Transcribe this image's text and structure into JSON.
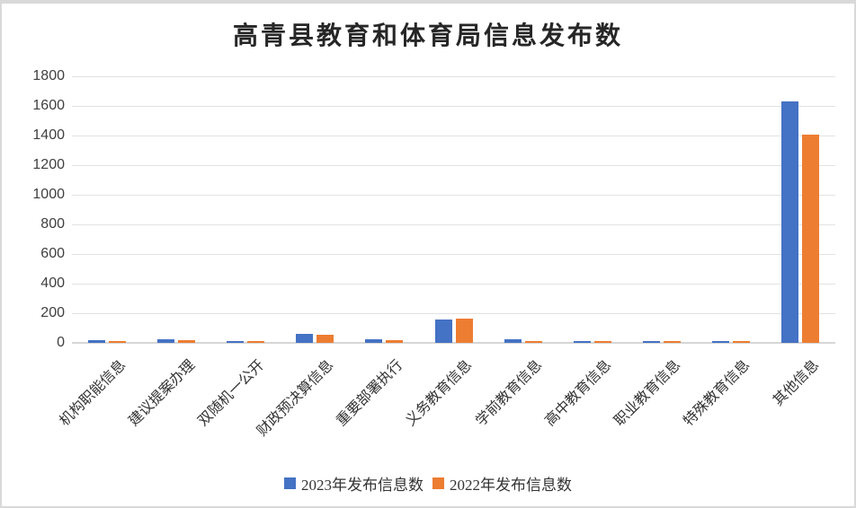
{
  "chart_data": {
    "type": "bar",
    "title": "高青县教育和体育局信息发布数",
    "categories": [
      "机构职能信息",
      "建议提案办理",
      "双随机一公开",
      "财政预决算信息",
      "重要部署执行",
      "义务教育信息",
      "学前教育信息",
      "高中教育信息",
      "职业教育信息",
      "特殊教育信息",
      "其他信息"
    ],
    "series": [
      {
        "name": "2023年发布信息数",
        "color": "#4472C4",
        "values": [
          20,
          22,
          15,
          58,
          22,
          160,
          22,
          14,
          13,
          14,
          1630
        ]
      },
      {
        "name": "2022年发布信息数",
        "color": "#ED7D31",
        "values": [
          10,
          18,
          12,
          55,
          20,
          162,
          12,
          11,
          11,
          12,
          1405
        ]
      }
    ],
    "xlabel": "",
    "ylabel": "",
    "ylim": [
      0,
      1800
    ],
    "yticks": [
      0,
      200,
      400,
      600,
      800,
      1000,
      1200,
      1400,
      1600,
      1800
    ],
    "grid": true,
    "legend_position": "bottom",
    "colors": {
      "gridline": "#e2e2e2",
      "axis_line": "#d6d6d6",
      "tick_text": "#404040",
      "title_text": "#262626",
      "frame_border": "#d9d9d9",
      "background": "#ffffff"
    }
  }
}
